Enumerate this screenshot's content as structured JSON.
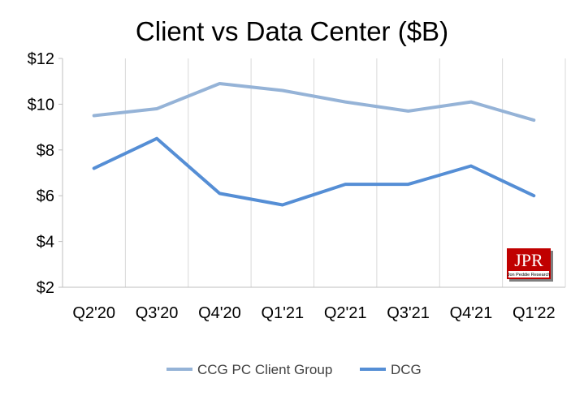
{
  "chart_data": {
    "type": "line",
    "title": "Client vs Data Center ($B)",
    "xlabel": "",
    "ylabel": "",
    "categories": [
      "Q2'20",
      "Q3'20",
      "Q4'20",
      "Q1'21",
      "Q2'21",
      "Q3'21",
      "Q4'21",
      "Q1'22"
    ],
    "ylim": [
      2,
      12
    ],
    "yticks": [
      2,
      4,
      6,
      8,
      10,
      12
    ],
    "ytick_labels": [
      "$2",
      "$4",
      "$6",
      "$8",
      "$10",
      "$12"
    ],
    "grid": "vertical",
    "legend_position": "bottom",
    "series": [
      {
        "name": "CCG PC Client Group",
        "color": "#95B3D7",
        "values": [
          9.5,
          9.8,
          10.9,
          10.6,
          10.1,
          9.7,
          10.1,
          9.3
        ]
      },
      {
        "name": "DCG",
        "color": "#558ED5",
        "values": [
          7.2,
          8.5,
          6.1,
          5.6,
          6.5,
          6.5,
          7.3,
          6.0
        ]
      }
    ]
  },
  "logo": {
    "text": "JPR",
    "subtitle": "Jon Peddie Research",
    "color": "#C00000"
  }
}
